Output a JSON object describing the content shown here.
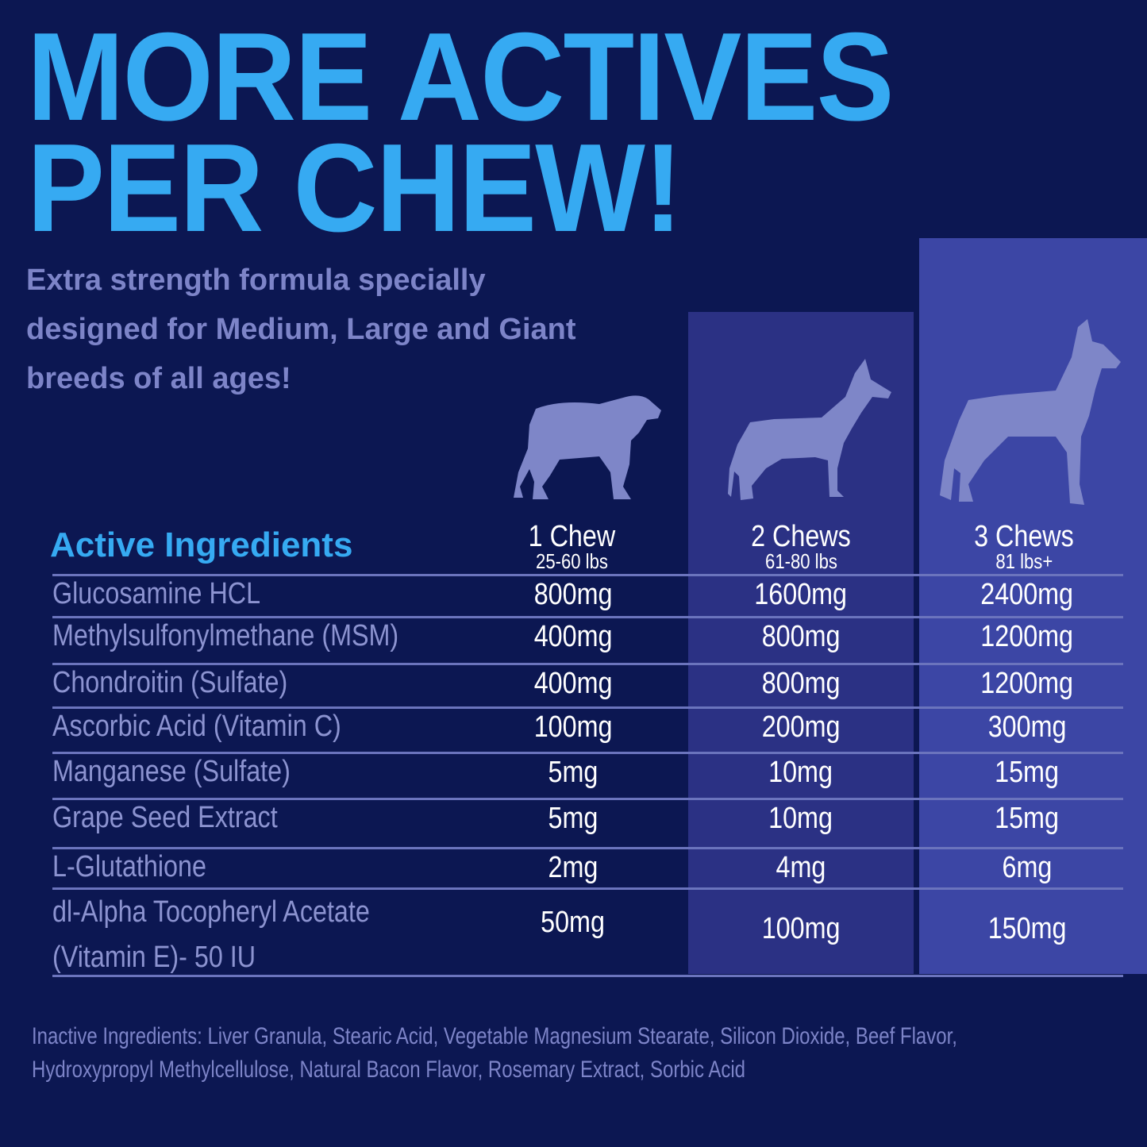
{
  "headline": {
    "line1": "MORE ACTIVES",
    "line2": "PER CHEW!"
  },
  "subtitle": "Extra strength formula specially designed for Medium, Large and Giant breeds of all ages!",
  "colors": {
    "background": "#0c1752",
    "accent": "#36aaf2",
    "column2": "#2b3184",
    "column3": "#3c46a5",
    "dog": "#7e86c8"
  },
  "table": {
    "heading": "Active Ingredients",
    "columns": [
      {
        "label": "1 Chew",
        "weight": "25-60 lbs",
        "icon": "medium-dog-icon"
      },
      {
        "label": "2 Chews",
        "weight": "61-80 lbs",
        "icon": "large-dog-icon"
      },
      {
        "label": "3 Chews",
        "weight": "81 lbs+",
        "icon": "giant-dog-icon"
      }
    ],
    "rows": [
      {
        "name": "Glucosamine HCL",
        "values": [
          "800mg",
          "1600mg",
          "2400mg"
        ]
      },
      {
        "name": "Methylsulfonylmethane (MSM)",
        "values": [
          "400mg",
          "800mg",
          "1200mg"
        ]
      },
      {
        "name": "Chondroitin (Sulfate)",
        "values": [
          "400mg",
          "800mg",
          "1200mg"
        ]
      },
      {
        "name": "Ascorbic Acid (Vitamin C)",
        "values": [
          "100mg",
          "200mg",
          "300mg"
        ]
      },
      {
        "name": "Manganese (Sulfate)",
        "values": [
          "5mg",
          "10mg",
          "15mg"
        ]
      },
      {
        "name": "Grape Seed Extract",
        "values": [
          "5mg",
          "10mg",
          "15mg"
        ]
      },
      {
        "name": "L-Glutathione",
        "values": [
          "2mg",
          "4mg",
          "6mg"
        ]
      },
      {
        "name": "dl-Alpha Tocopheryl Acetate (Vitamin E)- 50 IU",
        "values": [
          "50mg",
          "100mg",
          "150mg"
        ]
      }
    ]
  },
  "inactive": "Inactive Ingredients: Liver Granula, Stearic Acid, Vegetable Magnesium Stearate, Silicon Dioxide, Beef Flavor, Hydroxypropyl Methylcellulose, Natural Bacon Flavor, Rosemary Extract, Sorbic Acid"
}
